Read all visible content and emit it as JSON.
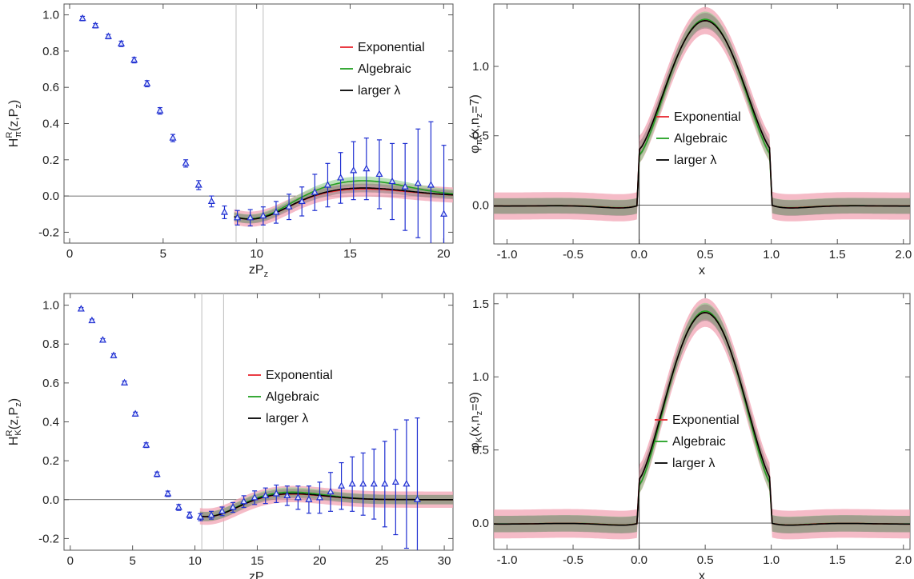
{
  "colors": {
    "exponential": "#e8262f",
    "algebraic": "#22a022",
    "larger": "#000000",
    "points": "#1f2fd1",
    "band_exp": "#f2a4b4",
    "band_lam": "#8c7a78",
    "band_alg": "#8fd08f",
    "refline": "#bdbdbd",
    "axis": "#555555"
  },
  "chart_data": [
    {
      "id": "pion_matrix_element",
      "type": "scatter",
      "xlabel": "zP",
      "xlabel_sub": "z",
      "ylabel_main": "H",
      "ylabel_sup": "R",
      "ylabel_sub": "π",
      "ylabel_tail": "(z,P",
      "ylabel_tail_sub": "z",
      "ylabel_end": ")",
      "xlim": [
        -0.3,
        20.5
      ],
      "ylim": [
        -0.26,
        1.06
      ],
      "xticks": [
        0,
        5,
        10,
        15,
        20
      ],
      "yticks": [
        -0.2,
        0.0,
        0.2,
        0.4,
        0.6,
        0.8,
        1.0
      ],
      "ytick_labels": [
        "-0.2",
        "0.0",
        "0.2",
        "0.4",
        "0.6",
        "0.8",
        "1.0"
      ],
      "vlines": [
        8.9,
        10.35
      ],
      "legend": [
        "Exponential",
        "Algebraic",
        "larger λ"
      ],
      "points": {
        "x": [
          0.69,
          1.38,
          2.07,
          2.76,
          3.45,
          4.14,
          4.83,
          5.52,
          6.21,
          6.9,
          7.59,
          8.28,
          8.97,
          9.66,
          10.35,
          11.04,
          11.73,
          12.42,
          13.11,
          13.8,
          14.49,
          15.18,
          15.87,
          16.56,
          17.25,
          17.94,
          18.63,
          19.32,
          20.01
        ],
        "y": [
          0.98,
          0.94,
          0.88,
          0.84,
          0.75,
          0.62,
          0.47,
          0.32,
          0.18,
          0.06,
          -0.03,
          -0.09,
          -0.12,
          -0.12,
          -0.11,
          -0.09,
          -0.06,
          -0.03,
          0.02,
          0.06,
          0.1,
          0.14,
          0.15,
          0.12,
          0.08,
          0.05,
          0.07,
          0.06,
          -0.1
        ],
        "err": [
          0.012,
          0.012,
          0.012,
          0.015,
          0.015,
          0.017,
          0.018,
          0.02,
          0.02,
          0.025,
          0.03,
          0.035,
          0.04,
          0.045,
          0.05,
          0.06,
          0.07,
          0.08,
          0.1,
          0.12,
          0.14,
          0.16,
          0.17,
          0.19,
          0.21,
          0.24,
          0.3,
          0.35,
          0.38
        ]
      }
    },
    {
      "id": "pion_da",
      "type": "line",
      "xlabel": "x",
      "ylabel_main": "φ",
      "ylabel_sub": "π",
      "ylabel_tail": "(x,n",
      "ylabel_tail_sub": "z",
      "ylabel_end": "=7)",
      "xlim": [
        -1.1,
        2.05
      ],
      "ylim": [
        -0.28,
        1.45
      ],
      "xticks": [
        -1.0,
        -0.5,
        0.0,
        0.5,
        1.0,
        1.5,
        2.0
      ],
      "xtick_labels": [
        "-1.0",
        "-0.5",
        "0.0",
        "0.5",
        "1.0",
        "1.5",
        "2.0"
      ],
      "yticks": [
        0.0,
        0.5,
        1.0
      ],
      "ytick_labels": [
        "0.0",
        "0.5",
        "1.0"
      ],
      "legend": [
        "Exponential",
        "Algebraic",
        "larger λ"
      ],
      "peak": 1.33,
      "edge": 0.4
    },
    {
      "id": "kaon_matrix_element",
      "type": "scatter",
      "xlabel": "zP",
      "xlabel_sub": "z",
      "ylabel_main": "H",
      "ylabel_sup": "R",
      "ylabel_sub": "K",
      "ylabel_tail": "(z,P",
      "ylabel_tail_sub": "z",
      "ylabel_end": ")",
      "xlim": [
        -0.5,
        30.7
      ],
      "ylim": [
        -0.26,
        1.06
      ],
      "xticks": [
        0,
        5,
        10,
        15,
        20,
        25,
        30
      ],
      "yticks": [
        -0.2,
        0.0,
        0.2,
        0.4,
        0.6,
        0.8,
        1.0
      ],
      "ytick_labels": [
        "-0.2",
        "0.0",
        "0.2",
        "0.4",
        "0.6",
        "0.8",
        "1.0"
      ],
      "vlines": [
        10.55,
        12.3
      ],
      "legend": [
        "Exponential",
        "Algebraic",
        "larger λ"
      ],
      "points": {
        "x": [
          0.87,
          1.74,
          2.61,
          3.48,
          4.35,
          5.22,
          6.09,
          6.96,
          7.83,
          8.7,
          9.57,
          10.44,
          11.31,
          12.18,
          13.05,
          13.92,
          14.79,
          15.66,
          16.53,
          17.4,
          18.27,
          19.14,
          20.01,
          20.88,
          21.75,
          22.62,
          23.49,
          24.36,
          25.23,
          26.1,
          26.97,
          27.84
        ],
        "y": [
          0.98,
          0.92,
          0.82,
          0.74,
          0.6,
          0.44,
          0.28,
          0.13,
          0.03,
          -0.04,
          -0.08,
          -0.09,
          -0.08,
          -0.06,
          -0.04,
          -0.01,
          0.01,
          0.02,
          0.03,
          0.02,
          0.01,
          0.0,
          0.01,
          0.04,
          0.07,
          0.08,
          0.08,
          0.08,
          0.08,
          0.09,
          0.08,
          0.0
        ],
        "err": [
          0.008,
          0.008,
          0.008,
          0.01,
          0.01,
          0.01,
          0.012,
          0.012,
          0.014,
          0.015,
          0.016,
          0.018,
          0.02,
          0.022,
          0.025,
          0.03,
          0.035,
          0.04,
          0.045,
          0.05,
          0.06,
          0.07,
          0.08,
          0.1,
          0.12,
          0.14,
          0.16,
          0.18,
          0.22,
          0.27,
          0.33,
          0.42
        ]
      }
    },
    {
      "id": "kaon_da",
      "type": "line",
      "xlabel": "x",
      "ylabel_main": "φ",
      "ylabel_sub": "K",
      "ylabel_tail": "(x,n",
      "ylabel_tail_sub": "z",
      "ylabel_end": "=9)",
      "xlim": [
        -1.1,
        2.05
      ],
      "ylim": [
        -0.18,
        1.57
      ],
      "xticks": [
        -1.0,
        -0.5,
        0.0,
        0.5,
        1.0,
        1.5,
        2.0
      ],
      "xtick_labels": [
        "-1.0",
        "-0.5",
        "0.0",
        "0.5",
        "1.0",
        "1.5",
        "2.0"
      ],
      "yticks": [
        0.0,
        0.5,
        1.0,
        1.5
      ],
      "ytick_labels": [
        "0.0",
        "0.5",
        "1.0",
        "1.5"
      ],
      "legend": [
        "Exponential",
        "Algebraic",
        "larger λ"
      ],
      "peak": 1.44,
      "edge": 0.3
    }
  ]
}
